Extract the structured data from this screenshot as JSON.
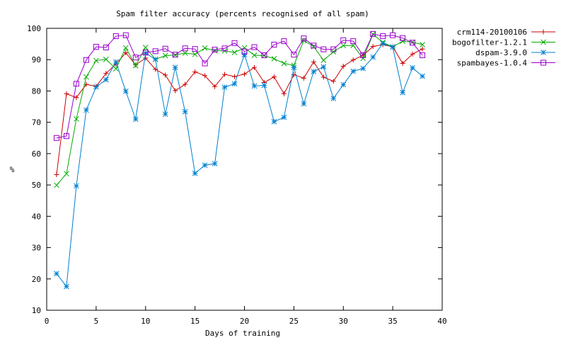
{
  "chart_data": {
    "type": "line",
    "title": "Spam filter accuracy (percents recognised of all spam)",
    "xlabel": "Days of training",
    "ylabel": "%",
    "xlim": [
      0,
      40
    ],
    "ylim": [
      10,
      100
    ],
    "xticks": [
      0,
      5,
      10,
      15,
      20,
      25,
      30,
      35,
      40
    ],
    "yticks": [
      10,
      20,
      30,
      40,
      50,
      60,
      70,
      80,
      90,
      100
    ],
    "grid": false,
    "legend_position": "outside-right-top",
    "x": [
      1,
      2,
      3,
      4,
      5,
      6,
      7,
      8,
      9,
      10,
      11,
      12,
      13,
      14,
      15,
      16,
      17,
      18,
      19,
      20,
      21,
      22,
      23,
      24,
      25,
      26,
      27,
      28,
      29,
      30,
      31,
      32,
      33,
      34,
      35,
      36,
      37,
      38
    ],
    "series": [
      {
        "name": "crm114-20100106",
        "color": "#cc0000",
        "marker": "plus",
        "values": [
          53.3,
          79.1,
          77.9,
          82.1,
          81.5,
          85.6,
          88.6,
          92.2,
          88.3,
          90.5,
          86.9,
          85.1,
          80.1,
          82.1,
          86.1,
          84.9,
          81.4,
          85.3,
          84.6,
          85.4,
          87.5,
          82.7,
          84.5,
          79.1,
          85.2,
          84.1,
          89.3,
          84.4,
          83.1,
          87.9,
          89.9,
          91.4,
          94.2,
          94.8,
          94.1,
          88.8,
          91.8,
          93.4
        ]
      },
      {
        "name": "bogofilter-1.2.1",
        "color": "#00aa00",
        "marker": "cross",
        "values": [
          49.9,
          53.6,
          71.1,
          84.5,
          89.7,
          90.1,
          87.1,
          93.8,
          88.1,
          93.9,
          90.1,
          91.3,
          91.5,
          92.1,
          91.7,
          93.7,
          92.9,
          92.8,
          92.3,
          93.8,
          91.4,
          91.3,
          90.3,
          88.8,
          88.2,
          96.1,
          94.2,
          89.8,
          92.5,
          94.5,
          94.5,
          90.4,
          98.1,
          95.5,
          94.1,
          95.9,
          95.6,
          94.8
        ]
      },
      {
        "name": "dspam-3.9.0",
        "color": "#0080d0",
        "marker": "star",
        "values": [
          21.7,
          17.6,
          49.7,
          73.9,
          81.3,
          83.6,
          89.3,
          79.9,
          71.0,
          92.1,
          90.1,
          72.6,
          87.5,
          73.4,
          53.7,
          56.3,
          56.8,
          81.2,
          82.3,
          91.6,
          81.6,
          81.8,
          70.2,
          71.6,
          87.5,
          75.9,
          86.2,
          87.7,
          77.6,
          82.0,
          86.3,
          87.2,
          90.8,
          95.2,
          94.0,
          79.5,
          87.4,
          84.7
        ]
      },
      {
        "name": "spambayes-1.0.4",
        "color": "#9900cc",
        "marker": "square",
        "values": [
          65.0,
          65.6,
          82.3,
          89.9,
          94.1,
          93.9,
          97.5,
          97.8,
          90.7,
          92.3,
          92.7,
          93.5,
          91.6,
          93.6,
          93.4,
          88.8,
          93.2,
          93.6,
          95.3,
          92.6,
          94.0,
          91.4,
          94.8,
          95.9,
          91.6,
          96.8,
          94.5,
          93.3,
          93.3,
          96.2,
          95.9,
          91.4,
          98.2,
          97.5,
          97.8,
          96.9,
          95.4,
          91.4
        ]
      }
    ]
  }
}
